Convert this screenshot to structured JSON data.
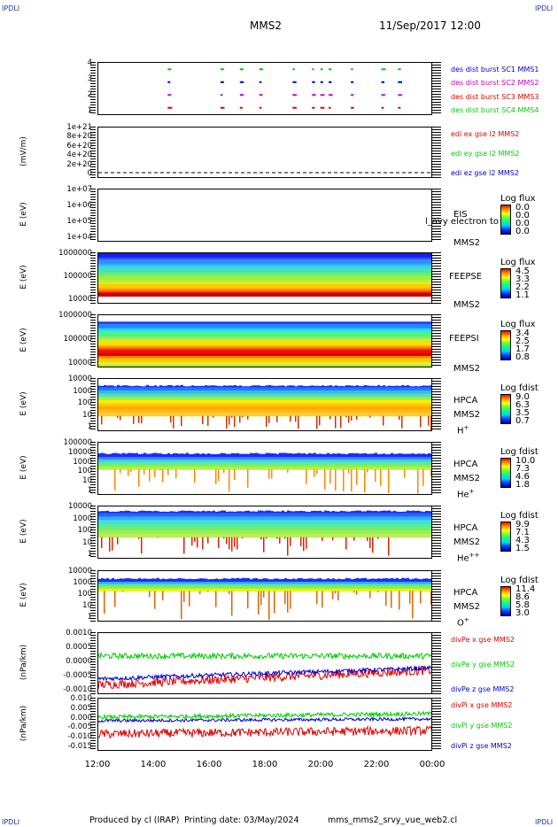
{
  "header": {
    "corner_label": "IPDLI",
    "spacecraft": "MMS2",
    "datetime": "11/Sep/2017 12:00"
  },
  "footer": {
    "produced": "Produced by cl (IRAP)",
    "printing": "Printing date: 03/May/2024",
    "script": "mms_mms2_srvy_vue_web2.cl"
  },
  "x_axis": {
    "ticks": [
      "12:00",
      "14:00",
      "16:00",
      "18:00",
      "20:00",
      "22:00",
      "00:00"
    ]
  },
  "colors": {
    "red": "#dd0000",
    "green": "#00cc00",
    "blue": "#0000cc",
    "magenta": "#cc00cc"
  },
  "chart_data": [
    {
      "type": "scatter",
      "panel": "burst",
      "ylabel": "",
      "yticks": [
        "4",
        "3",
        "2",
        "1"
      ],
      "ylim": [
        0.5,
        4.5
      ],
      "legend": [
        {
          "label": "des dist burst SC1 MMS1",
          "color": "#0000cc"
        },
        {
          "label": "des dist burst SC2 MMS2",
          "color": "#cc00cc"
        },
        {
          "label": "des dist burst SC3 MMS3",
          "color": "#dd0000"
        },
        {
          "label": "des dist burst SC4 MMS4",
          "color": "#00cc00"
        }
      ],
      "burst_times_hours": [
        14.5,
        16.4,
        17.1,
        17.8,
        19.0,
        19.7,
        20.0,
        20.3,
        21.1,
        22.2,
        22.8
      ]
    },
    {
      "type": "line",
      "panel": "edi",
      "ylabel": "(mV/m)",
      "yticks": [
        "1e+21",
        "8e+20",
        "6e+20",
        "4e+20",
        "2e+20",
        "0"
      ],
      "ylim": [
        0,
        1e+21
      ],
      "legend": [
        {
          "label": "edi ex gse l2 MMS2",
          "color": "#dd0000"
        },
        {
          "label": "edi ey gse l2 MMS2",
          "color": "#00cc00"
        },
        {
          "label": "edi ez gse l2 MMS2",
          "color": "#0000cc"
        }
      ]
    },
    {
      "type": "heatmap",
      "panel": "eis",
      "ylabel": "E (eV)",
      "yticks": [
        "1e+07",
        "1e+06",
        "1e+05",
        "1e+04"
      ],
      "instrument": "EIS",
      "overlay_text": "l_avy electron to",
      "spacecraft_label": "MMS2",
      "colorbar_title": "Log flux",
      "colorbar_values": [
        "0.0",
        "0.0",
        "0.0",
        "0.0"
      ]
    },
    {
      "type": "heatmap",
      "panel": "feepse",
      "ylabel": "E (eV)",
      "yticks": [
        "1000000",
        "100000",
        "10000"
      ],
      "instrument": "FEEPSE",
      "spacecraft_label": "MMS2",
      "colorbar_title": "Log flux",
      "colorbar_values": [
        "4.5",
        "3.3",
        "2.2",
        "1.1"
      ]
    },
    {
      "type": "heatmap",
      "panel": "feepsi",
      "ylabel": "E (eV)",
      "yticks": [
        "1000000",
        "100000",
        "10000"
      ],
      "instrument": "FEEPSI",
      "spacecraft_label": "MMS2",
      "colorbar_title": "Log flux",
      "colorbar_values": [
        "3.4",
        "2.5",
        "1.7",
        "0.8"
      ]
    },
    {
      "type": "heatmap",
      "panel": "hpca_h",
      "ylabel": "E (eV)",
      "yticks": [
        "10000",
        "1000",
        "100",
        "10",
        "1"
      ],
      "instrument": "HPCA",
      "spacecraft_label": "MMS2",
      "species": "H",
      "species_sup": "+",
      "colorbar_title": "Log fdist",
      "colorbar_values": [
        "9.0",
        "6.3",
        "3.5",
        "0.7"
      ]
    },
    {
      "type": "heatmap",
      "panel": "hpca_he1",
      "ylabel": "E (eV)",
      "yticks": [
        "100000",
        "10000",
        "1000",
        "100",
        "10",
        "1"
      ],
      "instrument": "HPCA",
      "spacecraft_label": "MMS2",
      "species": "He",
      "species_sup": "+",
      "colorbar_title": "Log fdist",
      "colorbar_values": [
        "10.0",
        "7.3",
        "4.6",
        "1.8"
      ]
    },
    {
      "type": "heatmap",
      "panel": "hpca_he2",
      "ylabel": "E (eV)",
      "yticks": [
        "10000",
        "1000",
        "100",
        "10",
        "1"
      ],
      "instrument": "HPCA",
      "spacecraft_label": "MMS2",
      "species": "He",
      "species_sup": "++",
      "colorbar_title": "Log fdist",
      "colorbar_values": [
        "9.9",
        "7.1",
        "4.3",
        "1.5"
      ]
    },
    {
      "type": "heatmap",
      "panel": "hpca_o",
      "ylabel": "E (eV)",
      "yticks": [
        "10000",
        "1000",
        "100",
        "10",
        "1"
      ],
      "instrument": "HPCA",
      "spacecraft_label": "MMS2",
      "species": "O",
      "species_sup": "+",
      "colorbar_title": "Log fdist",
      "colorbar_values": [
        "11.4",
        "8.6",
        "5.8",
        "3.0"
      ]
    },
    {
      "type": "line",
      "panel": "divpe",
      "ylabel": "(nPa/km)",
      "yticks": [
        "0.0010",
        "0.0005",
        "0.0000",
        "-0.0005",
        "-0.0010"
      ],
      "ylim": [
        -0.00125,
        0.00125
      ],
      "legend": [
        {
          "label": "divPe x gse MMS2",
          "color": "#dd0000"
        },
        {
          "label": "divPe y gse MMS2",
          "color": "#00cc00"
        },
        {
          "label": "divPe z gse MMS2",
          "color": "#0000cc"
        }
      ]
    },
    {
      "type": "line",
      "panel": "divpi",
      "ylabel": "(nPa/km)",
      "yticks": [
        "0.010",
        "0.005",
        "0.000",
        "-0.005",
        "-0.010",
        "-0.015"
      ],
      "ylim": [
        -0.017,
        0.012
      ],
      "legend": [
        {
          "label": "divPi x gse MMS2",
          "color": "#dd0000"
        },
        {
          "label": "divPi y gse MMS2",
          "color": "#00cc00"
        },
        {
          "label": "divPi z gse MMS2",
          "color": "#0000cc"
        }
      ]
    }
  ]
}
